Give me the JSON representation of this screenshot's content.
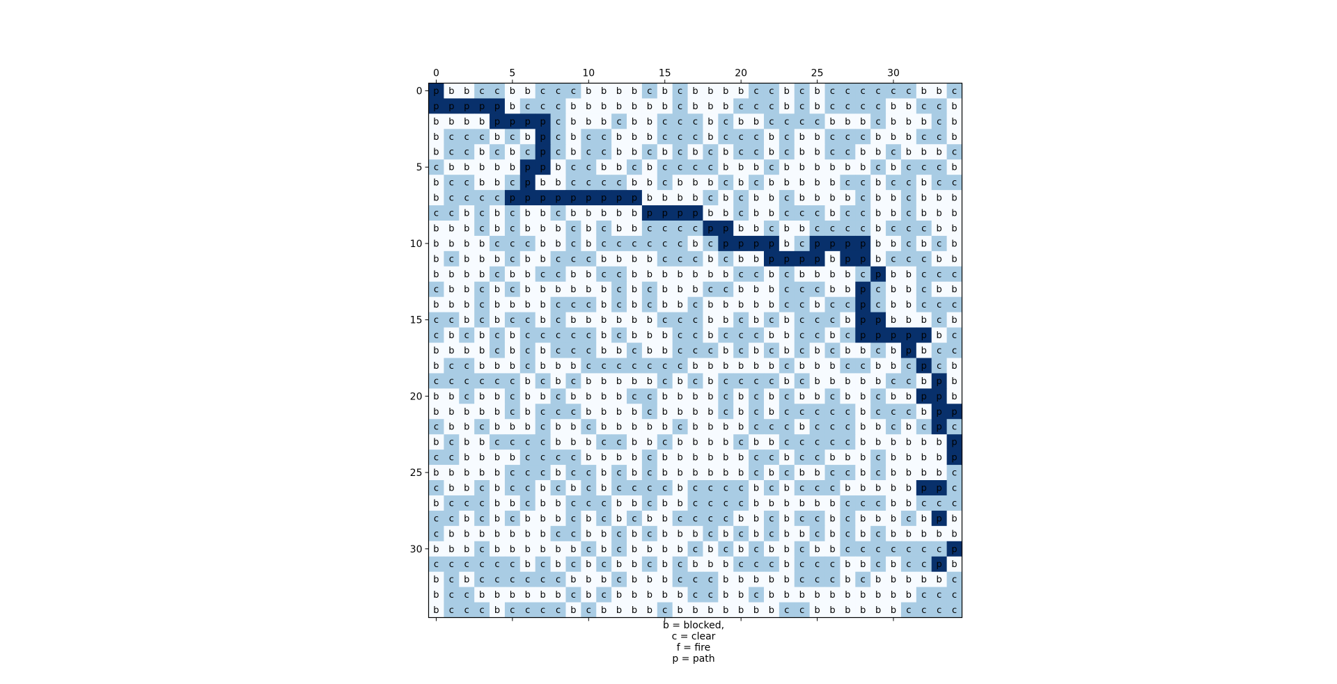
{
  "colors": {
    "b": "#f7fbff",
    "c": "#a9cce4",
    "f": "#6baed6",
    "p": "#08306b"
  },
  "chart_data": {
    "type": "heatmap",
    "title": "",
    "xlabel_lines": [
      "b = blocked,",
      "c = clear",
      "f = fire",
      "p = path"
    ],
    "ylabel": "",
    "x_ticks": [
      0,
      5,
      10,
      15,
      20,
      25,
      30
    ],
    "y_ticks": [
      0,
      5,
      10,
      15,
      20,
      25,
      30
    ],
    "x_range": [
      0,
      34
    ],
    "y_range": [
      0,
      34
    ],
    "legend": {
      "b": "blocked",
      "c": "clear",
      "f": "fire",
      "p": "path"
    },
    "grid": [
      "pbbccbbcccbbbbcbcbbbbccbcbccccccbbc",
      "pppppbcccbbbbbbbcbbbcccbcbccccbbcc",
      "bbbbppppcbbbcbbcccbcbbccccbbbcbbbc",
      "bcccbcbpcbccbbbcccbcccbcbbcccbbbcc",
      "bccbcbcpcbccbbcbcbcbccbcbbccbbcbbbc",
      "cbbbbbppbccbbcbccccbbbcbbbbbbcbcccb",
      "bccbbcpbbccccbbcbbbcbcbbbbbccbccbcc",
      "bccccpppppppppbbbbcbcbbcbbbbcbbcbb",
      "ccbcbcbbcbbbbbppppbbcbbcccbccbbcbb",
      "bbbcbcbbbcbcbbccccppbbcbbccccbcccb",
      "bbbbcccbbcbccccccbcppppbcppppbbcbcbc",
      "bcbbbcbbcccbbbbcccbcbbppppbppbcccbb",
      "bbbbcbbccbbccbbbbbbbccbcbbbbcpbbcccb",
      "cbbcbcbbbbbbcbcbbbccbbbcccbbpcbbcbb",
      "bbbcbbbbcccbcbcbbcbbbbbccbccpcbbccc",
      "ccbcbccbcbbbbbbcccbbcbcbcccbppbbbcb",
      "cbcbcbcccccbcbbbccbcccbbccbcpppppbc",
      "bbbbcbcbcccbbcbbcccbcbcbcbcbbcbpbcc",
      "bccbbbcbbbcccccccbbbbbbcbbbccbbcpcb",
      "ccccccbcbcbbbbbcbcbccccbcbbbbbccbpbc",
      "bbcbbcbbcbbbbccbbbbcbcbcbbcbbcbbppbc",
      "bbbbbcbcccbbbbcbbbbcbcbcccccbcccbppb",
      "cbbcbbbcbbcbbbbbcbbbbcccbcccbbcbcpc",
      "bcbbccccbbbccbbcbbbbcbbcccccbbbbbbp",
      "ccbbbbccccbbbbcbbbbbbccbccbbbcbbbbp",
      "bbbbbcccbccbcbcbbbbbbcbcbbccbcbbbbcp",
      "cbbcbccbcbcbccccbccccbcbcccbbbbbppc",
      "bcccbbcbbcccbbcbbccccbbbbbbcccbbcccpbb",
      "ccbcbcbbbcbcbcbbccccbbcbccbcbbbcbpbb",
      "cbbbbbbbccbbcbcbbbcbcbcbbcbcbcbbbbbbpc",
      "bbbcbbbbbbcbcbbbbcbcbcbbcbbcccccccppb",
      "ccccccbcbcbcbbcbcbbbcccbcccbbcbccpb",
      "bcbccccccbbbcbbbcccbbbbbcccbcbbbbbcpp",
      "bccbbbbbbcbcbbbbbccbbcbbbbbbbbbbcccp",
      "bcccbccccbcbbbbcbbbbbbbccbbbbbbccccbp"
    ]
  }
}
